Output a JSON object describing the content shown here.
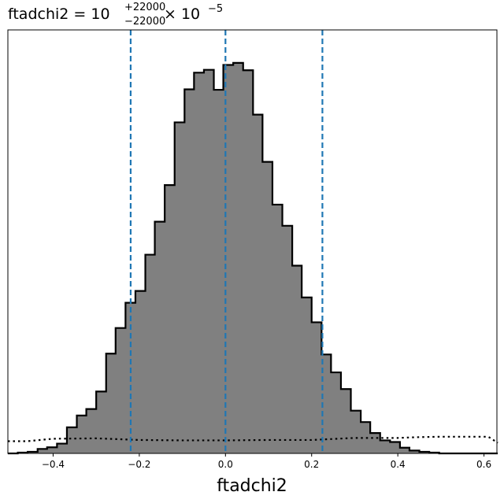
{
  "chart_data": {
    "type": "bar",
    "title": {
      "prefix": "ftadchi2 = 10",
      "superscript": "+22000",
      "subscript": "−22000",
      "suffix": " × 10",
      "exponent": "−5"
    },
    "xlabel": "ftadchi2",
    "ylabel": "",
    "xlim": [
      -0.505,
      0.63
    ],
    "ylim": [
      0,
      1.04
    ],
    "xticks": [
      -0.4,
      -0.2,
      0.0,
      0.2,
      0.4,
      0.6
    ],
    "xtick_labels": [
      "−0.4",
      "−0.2",
      "0.0",
      "0.2",
      "0.4",
      "0.6"
    ],
    "yticks_visible": false,
    "histogram": {
      "name": "",
      "fill": "#808080",
      "edge": "#000000",
      "bin_edges": [
        -0.505,
        -0.482,
        -0.459,
        -0.436,
        -0.414,
        -0.391,
        -0.368,
        -0.345,
        -0.323,
        -0.3,
        -0.277,
        -0.255,
        -0.232,
        -0.209,
        -0.186,
        -0.164,
        -0.141,
        -0.118,
        -0.095,
        -0.073,
        -0.05,
        -0.027,
        -0.005,
        0.018,
        0.041,
        0.064,
        0.086,
        0.109,
        0.132,
        0.155,
        0.177,
        0.2,
        0.223,
        0.245,
        0.268,
        0.291,
        0.314,
        0.336,
        0.359,
        0.382,
        0.405,
        0.427,
        0.45,
        0.473,
        0.496,
        0.518,
        0.541,
        0.564,
        0.587,
        0.609,
        0.632
      ],
      "counts": [
        0.0,
        0.002,
        0.004,
        0.011,
        0.015,
        0.024,
        0.064,
        0.093,
        0.109,
        0.152,
        0.245,
        0.308,
        0.37,
        0.399,
        0.488,
        0.569,
        0.659,
        0.813,
        0.894,
        0.935,
        0.942,
        0.893,
        0.954,
        0.959,
        0.941,
        0.832,
        0.716,
        0.611,
        0.559,
        0.461,
        0.383,
        0.322,
        0.243,
        0.199,
        0.158,
        0.105,
        0.077,
        0.05,
        0.032,
        0.028,
        0.014,
        0.007,
        0.004,
        0.002,
        0.0,
        0.0,
        0.0,
        0.0,
        0.0,
        0.0
      ]
    },
    "reference_line": {
      "style": "dotted",
      "color": "#000000",
      "x": [
        -0.505,
        -0.46,
        -0.4,
        -0.3,
        -0.2,
        -0.1,
        0.0,
        0.1,
        0.2,
        0.3,
        0.4,
        0.45,
        0.5,
        0.55,
        0.61,
        0.632
      ],
      "y": [
        0.03,
        0.03,
        0.036,
        0.037,
        0.033,
        0.032,
        0.032,
        0.033,
        0.033,
        0.038,
        0.038,
        0.04,
        0.041,
        0.041,
        0.041,
        0.026
      ]
    },
    "vlines": {
      "style": "dashed",
      "color": "#1f77b4",
      "x": [
        -0.22,
        0.0,
        0.225
      ]
    },
    "grid": false
  }
}
